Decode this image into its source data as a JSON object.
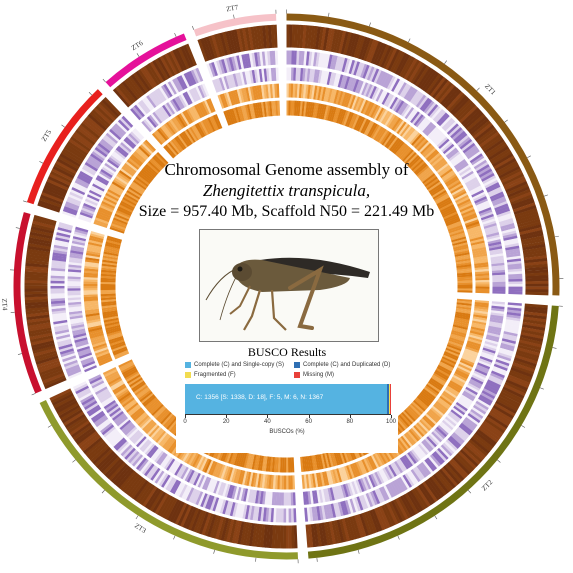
{
  "title_line1": "Chromosomal Genome assembly of",
  "title_line2": "Zhengitettix transpicula,",
  "title_line3": "Size = 957.40 Mb, Scaffold N50 = 221.49 Mb",
  "colors": {
    "ZT1": "#8a5a14",
    "ZT2": "#6f7414",
    "ZT3": "#8f9a2c",
    "ZT4": "#c8102e",
    "ZT5": "#e8201e",
    "ZT6": "#e5119a",
    "ZT7": "#f6c2c8",
    "density_dark": "#7a3a10",
    "heat_purple": "#4b1d7a",
    "heat_orange": "#f0a44a"
  },
  "chromosomes": [
    {
      "name": "ZT1",
      "length": 260
    },
    {
      "name": "ZT2",
      "length": 230
    },
    {
      "name": "ZT3",
      "length": 190
    },
    {
      "name": "ZT4",
      "length": 110
    },
    {
      "name": "ZT5",
      "length": 80
    },
    {
      "name": "ZT6",
      "length": 55
    },
    {
      "name": "ZT7",
      "length": 50
    }
  ],
  "photo_icon": "grasshopper-specimen-photo",
  "busco": {
    "title": "BUSCO Results",
    "legend": [
      {
        "label": "Complete (C) and Single-copy (S)",
        "color": "#55b3e1"
      },
      {
        "label": "Complete (C) and Duplicated (D)",
        "color": "#2f6fb3"
      },
      {
        "label": "Fragmented (F)",
        "color": "#f2dc50"
      },
      {
        "label": "Missing (M)",
        "color": "#e8403a"
      }
    ],
    "summary": "C: 1356 [S: 1338, D: 18], F: 5, M: 6, N: 1367",
    "percent_single": 97.9,
    "percent_duplicated": 1.3,
    "percent_fragmented": 0.4,
    "percent_missing": 0.4,
    "ticks": [
      "0",
      "20",
      "40",
      "60",
      "80",
      "100"
    ],
    "xlabel": "BUSCOs (%)"
  }
}
